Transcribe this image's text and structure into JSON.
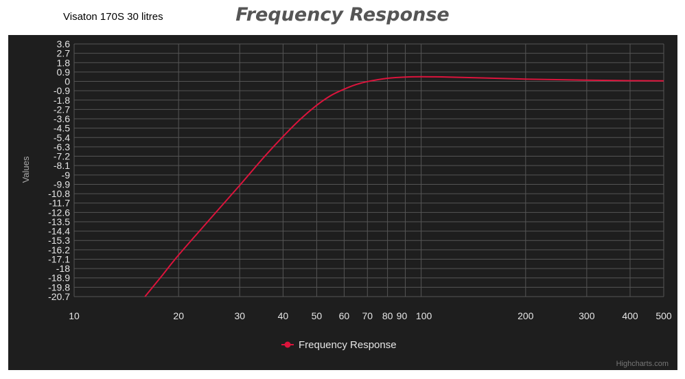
{
  "header": {
    "subtitle": "Visaton 170S 30 litres",
    "title": "Frequency Response"
  },
  "credit": "Highcharts.com",
  "chart_data": {
    "type": "line",
    "title": "Frequency Response",
    "subtitle": "Visaton 170S 30 litres",
    "xlabel": "",
    "ylabel": "Values",
    "x_scale": "log",
    "xlim": [
      10,
      500
    ],
    "ylim": [
      -20.7,
      3.6
    ],
    "x_ticks": [
      10,
      20,
      30,
      40,
      50,
      60,
      70,
      80,
      90,
      100,
      200,
      300,
      400,
      500
    ],
    "y_ticks": [
      3.6,
      2.7,
      1.8,
      0.9,
      0,
      -0.9,
      -1.8,
      -2.7,
      -3.6,
      -4.5,
      -5.4,
      -6.3,
      -7.2,
      -8.1,
      -9,
      -9.9,
      -10.8,
      -11.7,
      -12.6,
      -13.5,
      -14.4,
      -15.3,
      -16.2,
      -17.1,
      -18,
      -18.9,
      -19.8,
      -20.7
    ],
    "grid": true,
    "legend": "bottom-center",
    "series": [
      {
        "name": "Frequency Response",
        "color": "#dc143c",
        "x": [
          16,
          18,
          20,
          25,
          30,
          35,
          40,
          45,
          50,
          55,
          60,
          65,
          70,
          80,
          90,
          100,
          120,
          150,
          200,
          300,
          400,
          500
        ],
        "values": [
          -20.7,
          -18.6,
          -16.7,
          -13.0,
          -10.0,
          -7.4,
          -5.3,
          -3.6,
          -2.3,
          -1.35,
          -0.75,
          -0.3,
          -0.02,
          0.3,
          0.42,
          0.45,
          0.42,
          0.33,
          0.22,
          0.12,
          0.07,
          0.05
        ]
      }
    ]
  }
}
